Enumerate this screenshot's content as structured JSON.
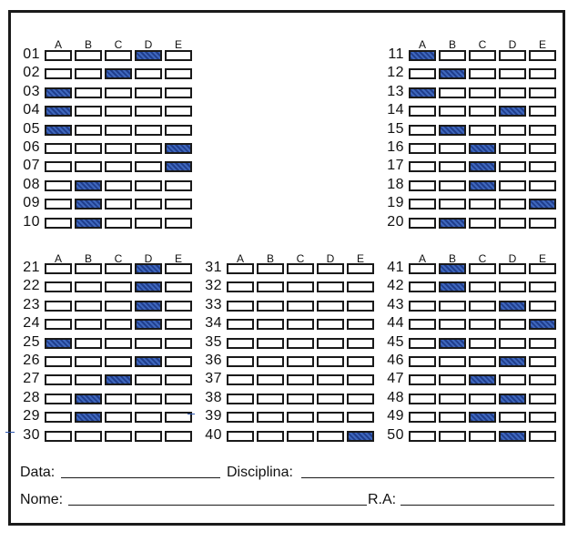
{
  "sheet": {
    "options": [
      "A",
      "B",
      "C",
      "D",
      "E"
    ],
    "blocks": [
      {
        "questions": [
          {
            "number": "01",
            "marked": "D"
          },
          {
            "number": "02",
            "marked": "C"
          },
          {
            "number": "03",
            "marked": "A"
          },
          {
            "number": "04",
            "marked": "A"
          },
          {
            "number": "05",
            "marked": "A"
          },
          {
            "number": "06",
            "marked": "E"
          },
          {
            "number": "07",
            "marked": "E"
          },
          {
            "number": "08",
            "marked": "B"
          },
          {
            "number": "09",
            "marked": "B"
          },
          {
            "number": "10",
            "marked": "B"
          }
        ]
      },
      {
        "questions": [
          {
            "number": "11",
            "marked": "A"
          },
          {
            "number": "12",
            "marked": "B"
          },
          {
            "number": "13",
            "marked": "A"
          },
          {
            "number": "14",
            "marked": "D"
          },
          {
            "number": "15",
            "marked": "B"
          },
          {
            "number": "16",
            "marked": "C"
          },
          {
            "number": "17",
            "marked": "C"
          },
          {
            "number": "18",
            "marked": "C"
          },
          {
            "number": "19",
            "marked": "E"
          },
          {
            "number": "20",
            "marked": "B"
          }
        ]
      },
      {
        "questions": [
          {
            "number": "21",
            "marked": "D"
          },
          {
            "number": "22",
            "marked": "D"
          },
          {
            "number": "23",
            "marked": "D"
          },
          {
            "number": "24",
            "marked": "D"
          },
          {
            "number": "25",
            "marked": "A"
          },
          {
            "number": "26",
            "marked": "D"
          },
          {
            "number": "27",
            "marked": "C"
          },
          {
            "number": "28",
            "marked": "B"
          },
          {
            "number": "29",
            "marked": "B"
          },
          {
            "number": "30",
            "marked": ""
          }
        ]
      },
      {
        "questions": [
          {
            "number": "31",
            "marked": ""
          },
          {
            "number": "32",
            "marked": ""
          },
          {
            "number": "33",
            "marked": ""
          },
          {
            "number": "34",
            "marked": ""
          },
          {
            "number": "35",
            "marked": ""
          },
          {
            "number": "36",
            "marked": ""
          },
          {
            "number": "37",
            "marked": ""
          },
          {
            "number": "38",
            "marked": ""
          },
          {
            "number": "39",
            "marked": ""
          },
          {
            "number": "40",
            "marked": "E"
          }
        ]
      },
      {
        "questions": [
          {
            "number": "41",
            "marked": "B"
          },
          {
            "number": "42",
            "marked": "B"
          },
          {
            "number": "43",
            "marked": "D"
          },
          {
            "number": "44",
            "marked": "E"
          },
          {
            "number": "45",
            "marked": "B"
          },
          {
            "number": "46",
            "marked": "D"
          },
          {
            "number": "47",
            "marked": "C"
          },
          {
            "number": "48",
            "marked": "D"
          },
          {
            "number": "49",
            "marked": "C"
          },
          {
            "number": "50",
            "marked": "D"
          }
        ]
      }
    ]
  },
  "form": {
    "data_label": "Data:",
    "disciplina_label": "Disciplina:",
    "nome_label": "Nome:",
    "ra_label": "R.A:"
  },
  "colors": {
    "ink": "#1a1a1a",
    "pen": "#2f58b0"
  }
}
